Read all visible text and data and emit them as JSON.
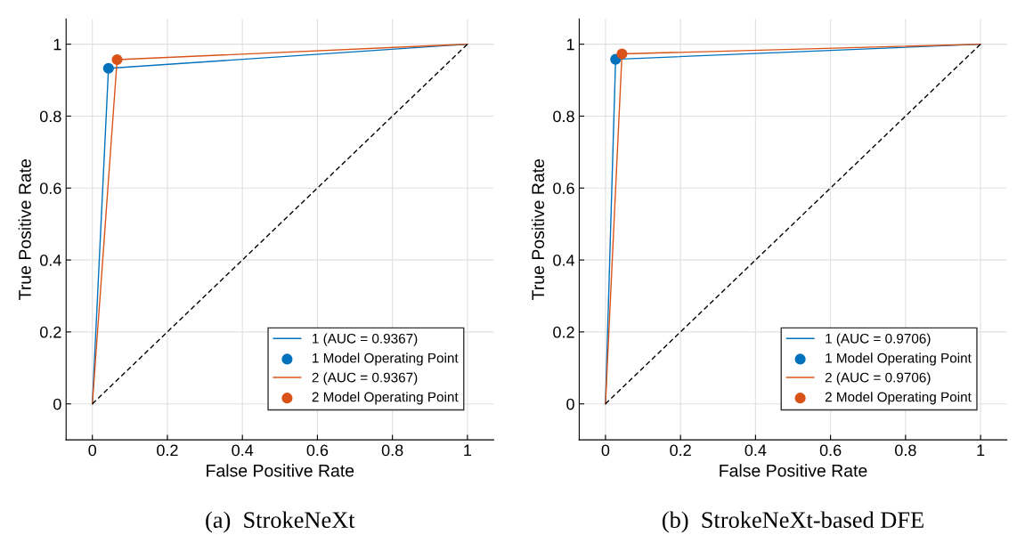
{
  "chart_data": [
    {
      "type": "line",
      "title": "(a)  StrokeNeXt",
      "xlabel": "False Positive Rate",
      "ylabel": "True Positive Rate",
      "xlim": [
        -0.07,
        1.07
      ],
      "ylim": [
        -0.1,
        1.07
      ],
      "xticks": [
        0,
        0.2,
        0.4,
        0.6,
        0.8,
        1
      ],
      "yticks": [
        0,
        0.2,
        0.4,
        0.6,
        0.8,
        1
      ],
      "grid": true,
      "legend": "bottom right",
      "series": [
        {
          "name": "1 (AUC = 0.9367)",
          "color": "#0072bd",
          "x": [
            0,
            0.043,
            1
          ],
          "values": [
            0,
            0.933,
            1
          ]
        },
        {
          "name": "1 Model Operating Point",
          "type": "scatter",
          "marker": "circle",
          "color": "#0072bd",
          "x": [
            0.043
          ],
          "values": [
            0.933
          ]
        },
        {
          "name": "2 (AUC = 0.9367)",
          "color": "#d95319",
          "x": [
            0,
            0.066,
            1
          ],
          "values": [
            0,
            0.957,
            1
          ]
        },
        {
          "name": "2 Model Operating Point",
          "type": "scatter",
          "marker": "circle",
          "color": "#d95319",
          "x": [
            0.066
          ],
          "values": [
            0.957
          ]
        },
        {
          "type": "line",
          "line_style": "dashed",
          "color": "#000000",
          "x": [
            0,
            1
          ],
          "values": [
            0,
            1
          ]
        }
      ]
    },
    {
      "type": "line",
      "title": "(b)  StrokeNeXt-based DFE",
      "xlabel": "False Positive Rate",
      "ylabel": "True Positive Rate",
      "xlim": [
        -0.07,
        1.07
      ],
      "ylim": [
        -0.1,
        1.07
      ],
      "xticks": [
        0,
        0.2,
        0.4,
        0.6,
        0.8,
        1
      ],
      "yticks": [
        0,
        0.2,
        0.4,
        0.6,
        0.8,
        1
      ],
      "grid": true,
      "legend": "bottom right",
      "series": [
        {
          "name": "1 (AUC = 0.9706)",
          "color": "#0072bd",
          "x": [
            0,
            0.027,
            1
          ],
          "values": [
            0,
            0.958,
            1
          ]
        },
        {
          "name": "1 Model Operating Point",
          "type": "scatter",
          "marker": "circle",
          "color": "#0072bd",
          "x": [
            0.027
          ],
          "values": [
            0.958
          ]
        },
        {
          "name": "2 (AUC = 0.9706)",
          "color": "#d95319",
          "x": [
            0,
            0.044,
            1
          ],
          "values": [
            0,
            0.973,
            1
          ]
        },
        {
          "name": "2 Model Operating Point",
          "type": "scatter",
          "marker": "circle",
          "color": "#d95319",
          "x": [
            0.044
          ],
          "values": [
            0.973
          ]
        },
        {
          "type": "line",
          "line_style": "dashed",
          "color": "#000000",
          "x": [
            0,
            1
          ],
          "values": [
            0,
            1
          ]
        }
      ]
    }
  ]
}
